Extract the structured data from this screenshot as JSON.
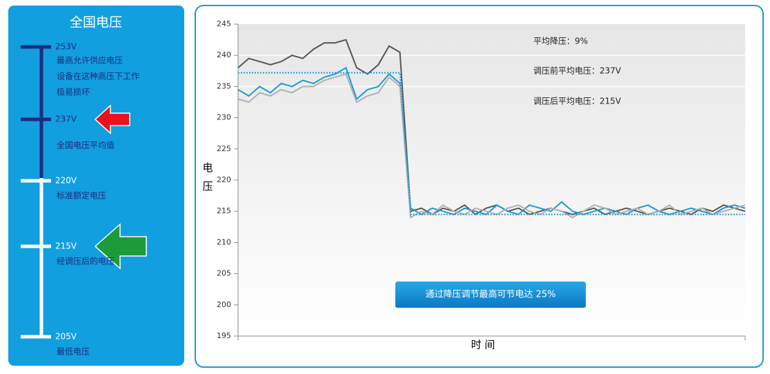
{
  "panel": {
    "title": "全国电压",
    "levels": [
      {
        "label": "253V",
        "description": [
          "最高允许供应电压",
          "设备在这种高压下工作",
          "极易损坏"
        ]
      },
      {
        "label": "237V",
        "description": [
          "全国电压平均值"
        ]
      },
      {
        "label": "220V",
        "description": [
          "标准额定电压"
        ]
      },
      {
        "label": "215V",
        "description": [
          "经调压后的电压"
        ]
      },
      {
        "label": "205V",
        "description": [
          "最低电压"
        ]
      }
    ]
  },
  "chart_data": {
    "type": "line",
    "y_label": "电压",
    "x_label": "时 间",
    "annotations": [
      "平均降压：9%",
      "调压前平均电压：237V",
      "调压后平均电压：215V"
    ],
    "button": "通过降压调节最高可节电达 25%",
    "ylim": [
      195,
      245
    ],
    "yticks": [
      195,
      200,
      205,
      210,
      215,
      220,
      225,
      230,
      235,
      240,
      245
    ],
    "categories": [
      null,
      null,
      null,
      null,
      null,
      null,
      null,
      null,
      null,
      null,
      null,
      null,
      null,
      null,
      null,
      null,
      null,
      null,
      null,
      null,
      null,
      null,
      null,
      null,
      null,
      null,
      null,
      null,
      null,
      null,
      null,
      null,
      null,
      null,
      null,
      null,
      null,
      null,
      null,
      null,
      null,
      null,
      null,
      null,
      null,
      null,
      null,
      null
    ],
    "series": [
      {
        "color": "#555555",
        "values": [
          238,
          239.5,
          239,
          238.5,
          239,
          240,
          239.5,
          241,
          242,
          242,
          242.5,
          238,
          237,
          238.5,
          241.5,
          240.5,
          215,
          215.5,
          214.5,
          215.5,
          215,
          216,
          214.5,
          215.5,
          216,
          215,
          215.5,
          214.5,
          215,
          215.5,
          215,
          214.5,
          215,
          215.5,
          214.5,
          215,
          215.5,
          215,
          214.5,
          215,
          215.5,
          215,
          214.5,
          215.5,
          215,
          216,
          215.5,
          215
        ]
      },
      {
        "color": "#1a9ad6",
        "values": [
          234.5,
          233.5,
          235,
          234,
          235.5,
          235,
          236,
          235.5,
          236.5,
          237,
          238,
          233,
          234.5,
          235,
          237,
          235.5,
          215.5,
          214.5,
          215.5,
          215,
          214.5,
          215.5,
          215,
          214.5,
          216,
          215,
          214.5,
          216,
          215.5,
          215,
          216.5,
          215,
          214.5,
          215,
          215.5,
          215,
          214.5,
          215.5,
          216,
          215,
          214.5,
          215,
          215.5,
          215,
          214.5,
          215.5,
          216,
          215.5
        ]
      },
      {
        "color": "#b0b0b0",
        "values": [
          233,
          232.5,
          234,
          233.5,
          234.5,
          234,
          235,
          235,
          236,
          236.5,
          237,
          232.5,
          233.5,
          234,
          236.5,
          235,
          214,
          215,
          214.5,
          216,
          215,
          214.5,
          215.5,
          215,
          214.5,
          215.5,
          216,
          215,
          214.5,
          215.5,
          215,
          214,
          215,
          216,
          215.5,
          214.5,
          215,
          215.5,
          214.5,
          215,
          216,
          214.5,
          215,
          215.5,
          214.5,
          215,
          215.5,
          216
        ]
      },
      {
        "color": "#1a9ad6",
        "style": "dotted",
        "values": [
          237.2,
          237.2,
          237.2,
          237.2,
          237.2,
          237.2,
          237.2,
          237.2,
          237.2,
          237.2,
          237.2,
          237.2,
          237.2,
          237.2,
          237.2,
          237.2,
          214.5,
          214.5,
          214.5,
          214.5,
          214.5,
          214.5,
          214.5,
          214.5,
          214.5,
          214.5,
          214.5,
          214.5,
          214.5,
          214.5,
          214.5,
          214.5,
          214.5,
          214.5,
          214.5,
          214.5,
          214.5,
          214.5,
          214.5,
          214.5,
          214.5,
          214.5,
          214.5,
          214.5,
          214.5,
          214.5,
          214.5,
          214.5
        ]
      }
    ]
  }
}
